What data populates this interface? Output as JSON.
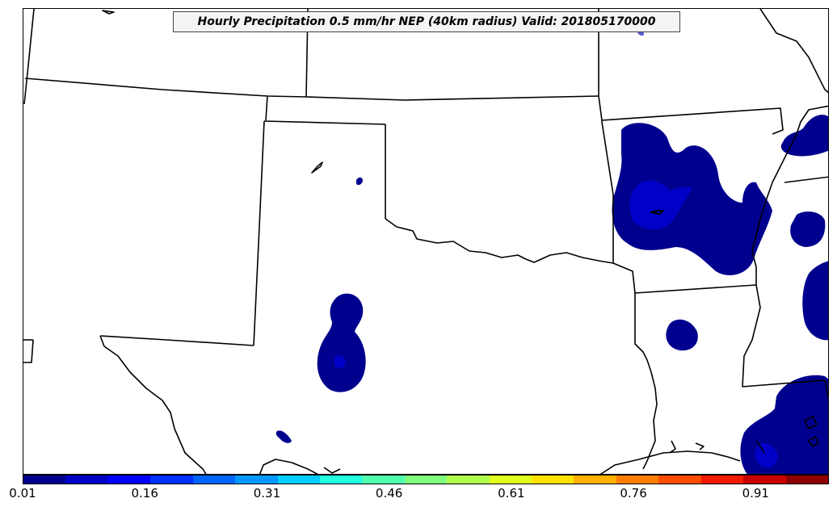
{
  "title": "Hourly Precipitation 0.5 mm/hr NEP (40km radius) Valid: 201805170000",
  "colorbar": {
    "colors": [
      "#00008f",
      "#0000c8",
      "#0000ff",
      "#0030ff",
      "#0064ff",
      "#0098ff",
      "#00ccff",
      "#20ffdf",
      "#50ffae",
      "#80ff7e",
      "#b0ff4e",
      "#dfff1f",
      "#ffe200",
      "#ffb000",
      "#ff7e00",
      "#ff4c00",
      "#f21a00",
      "#c80000",
      "#8f0000"
    ],
    "tick_labels": [
      "0.01",
      "0.16",
      "0.31",
      "0.46",
      "0.61",
      "0.76",
      "0.91"
    ],
    "tick_values": [
      0.01,
      0.16,
      0.31,
      0.46,
      0.61,
      0.76,
      0.91
    ],
    "range": [
      0.01,
      1.0
    ]
  },
  "map": {
    "region": "Southern Plains / South Central US",
    "fill_colors": {
      "low": "#00008f",
      "mid": "#0000c8",
      "peak": "#5a5ad0"
    }
  }
}
